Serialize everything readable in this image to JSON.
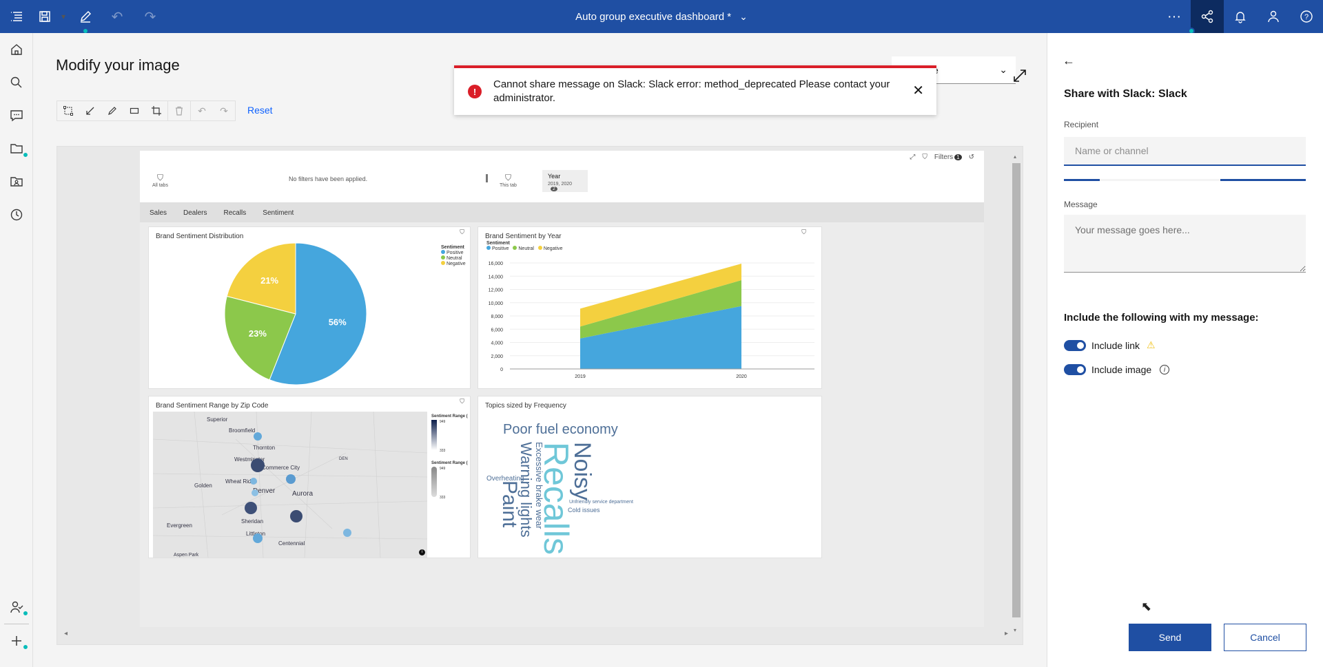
{
  "topbar": {
    "title": "Auto group executive dashboard *",
    "icons": [
      "menu-icon",
      "save-icon",
      "chevron-down-icon",
      "pencil-icon",
      "undo-icon",
      "redo-icon",
      "overflow-menu-icon",
      "share-icon",
      "notification-icon",
      "user-icon",
      "help-icon"
    ]
  },
  "leftrail": {
    "items": [
      "home-icon",
      "search-icon",
      "chat-icon",
      "folder-icon",
      "team-folder-icon",
      "recent-icon"
    ],
    "bottom": [
      "user-check-icon",
      "add-icon"
    ]
  },
  "main": {
    "title": "Modify your image",
    "reset_label": "Reset",
    "select_value": "e"
  },
  "toast": {
    "message": "Cannot share message on Slack: Slack error: method_deprecated Please contact your administrator.",
    "color": "#da1e28"
  },
  "dashboard": {
    "filters_label": "Filters",
    "filters_count": "1",
    "all_tabs_label": "All tabs",
    "no_filters": "No filters have been applied.",
    "this_tab_label": "This tab",
    "year_label": "Year",
    "year_value": "2019, 2020",
    "year_count": "2",
    "tabs": [
      "Sales",
      "Dealers",
      "Recalls",
      "Sentiment"
    ],
    "sentiment_legend_title": "Sentiment",
    "legend": [
      "Positive",
      "Neutral",
      "Negative"
    ],
    "map": {
      "title": "Brand Sentiment Range by Zip Code",
      "places": [
        "Superior",
        "Broomfield",
        "Thornton",
        "Westminster",
        "Commerce City",
        "DEN",
        "Wheat Ridge",
        "Golden",
        "Denver",
        "Aurora",
        "Sheridan",
        "Littleton",
        "Evergreen",
        "Centennial",
        "Aspen Park"
      ],
      "legend1_title": "Sentiment Range (",
      "legend2_title": "Sentiment Range (",
      "legend1_hi": "949",
      "legend1_lo": "333",
      "legend2_hi": "949",
      "legend2_lo": "333"
    },
    "wordcloud": {
      "title": "Topics sized by Frequency",
      "words": {
        "poor_fuel": "Poor fuel economy",
        "recalls": "Recalls",
        "noisy": "Noisy",
        "excessive": "Excessive brake wear",
        "warning": "Warning lights",
        "paint": "Paint",
        "overheating": "Overheating",
        "unfriendly": "Unfriendly service department",
        "cold": "Cold issues"
      }
    }
  },
  "chart_data": [
    {
      "type": "pie",
      "title": "Brand Sentiment Distribution",
      "categories": [
        "Positive",
        "Neutral",
        "Negative"
      ],
      "values": [
        56,
        23,
        21
      ],
      "labels": [
        "56%",
        "23%",
        "21%"
      ],
      "colors": [
        "#45a6dd",
        "#8cc84b",
        "#f4d03f"
      ],
      "legend_title": "Sentiment",
      "legend_placement": "top-right"
    },
    {
      "type": "area",
      "title": "Brand Sentiment by Year",
      "x": [
        "2019",
        "2020"
      ],
      "series": [
        {
          "name": "Positive",
          "values": [
            4600,
            9500
          ],
          "color": "#45a6dd"
        },
        {
          "name": "Neutral",
          "values": [
            1800,
            3900
          ],
          "color": "#8cc84b"
        },
        {
          "name": "Negative",
          "values": [
            2700,
            2500
          ],
          "color": "#f4d03f"
        }
      ],
      "stacked": true,
      "ylim": [
        0,
        16000
      ],
      "yticks": [
        "0",
        "2,000",
        "4,000",
        "6,000",
        "8,000",
        "10,000",
        "12,000",
        "14,000",
        "16,000"
      ],
      "legend_title": "Sentiment",
      "legend_placement": "top-left"
    }
  ],
  "share_panel": {
    "title": "Share with Slack: Slack",
    "recipient_label": "Recipient",
    "recipient_placeholder": "Name or channel",
    "message_label": "Message",
    "message_placeholder": "Your message goes here...",
    "include_heading": "Include the following with my message:",
    "include_link_label": "Include link",
    "include_image_label": "Include image",
    "send_label": "Send",
    "cancel_label": "Cancel"
  }
}
